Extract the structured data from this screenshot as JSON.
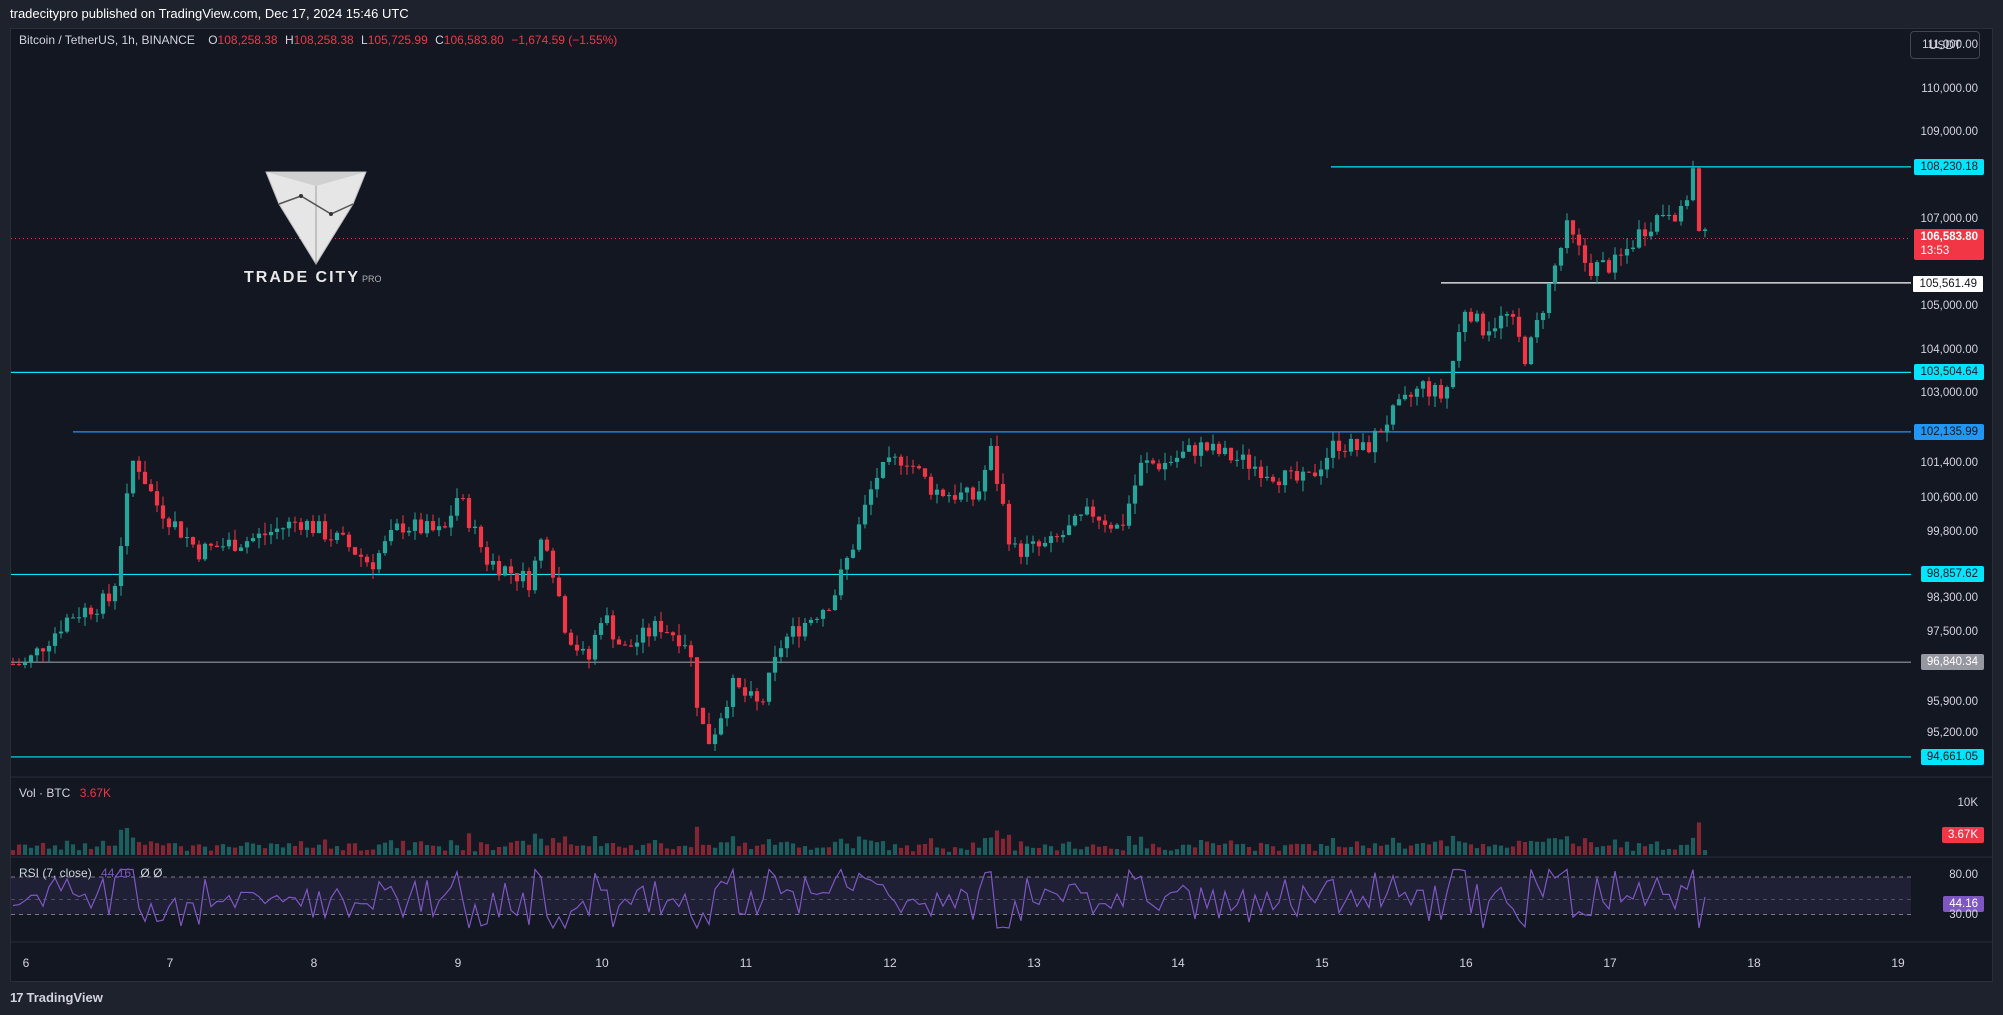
{
  "header": {
    "text": "tradecitypro published on TradingView.com, Dec 17, 2024 15:46 UTC"
  },
  "footer": {
    "brand": "TradingView"
  },
  "legend": {
    "symbol": "Bitcoin / TetherUS, 1h, BINANCE",
    "o_key": "O",
    "o": "108,258.38",
    "h_key": "H",
    "h": "108,258.38",
    "l_key": "L",
    "l": "105,725.99",
    "c_key": "C",
    "c": "106,583.80",
    "change": "−1,674.59 (−1.55%)"
  },
  "unit": "USDT",
  "logo": {
    "brand": "TRADE CITY",
    "suffix": "PRO"
  },
  "colors": {
    "up": "#26a69a",
    "down": "#f23645",
    "level": "#00e5ff",
    "background": "#131722"
  },
  "chart_data": {
    "type": "candlestick",
    "symbol": "BTCUSDT",
    "ylim": [
      94200,
      111400
    ],
    "x_ticks": [
      "6",
      "7",
      "8",
      "9",
      "10",
      "11",
      "12",
      "13",
      "14",
      "15",
      "16",
      "17",
      "18",
      "19"
    ],
    "y_ticks": [
      "111,000.00",
      "110,000.00",
      "109,000.00",
      "107,000.00",
      "105,000.00",
      "104,000.00",
      "103,000.00",
      "101,400.00",
      "100,600.00",
      "99,800.00",
      "98,300.00",
      "97,500.00",
      "95,900.00",
      "95,200.00"
    ],
    "current_price": {
      "value": "106,583.80",
      "countdown": "13:53"
    },
    "levels": [
      {
        "price": 108230.18,
        "label": "108,230.18",
        "color": "#00e5ff"
      },
      {
        "price": 105561.49,
        "label": "105,561.49",
        "color": "#ffffff"
      },
      {
        "price": 103504.64,
        "label": "103,504.64",
        "color": "#00e5ff"
      },
      {
        "price": 102135.99,
        "label": "102,135.99",
        "color": "#2196f3"
      },
      {
        "price": 98857.62,
        "label": "98,857.62",
        "color": "#00e5ff"
      },
      {
        "price": 96840.34,
        "label": "96,840.34",
        "color": "#9598a1"
      },
      {
        "price": 94661.05,
        "label": "94,661.05",
        "color": "#00e5ff"
      }
    ],
    "closes_anchor": [
      {
        "day": 6.0,
        "p": 96800
      },
      {
        "day": 6.3,
        "p": 97900
      },
      {
        "day": 6.6,
        "p": 98300
      },
      {
        "day": 6.75,
        "p": 101600
      },
      {
        "day": 6.9,
        "p": 100500
      },
      {
        "day": 7.2,
        "p": 99400
      },
      {
        "day": 7.6,
        "p": 99700
      },
      {
        "day": 7.9,
        "p": 100100
      },
      {
        "day": 8.2,
        "p": 99600
      },
      {
        "day": 8.4,
        "p": 99100
      },
      {
        "day": 8.6,
        "p": 100000
      },
      {
        "day": 8.9,
        "p": 99800
      },
      {
        "day": 9.0,
        "p": 100700
      },
      {
        "day": 9.2,
        "p": 99200
      },
      {
        "day": 9.5,
        "p": 98700
      },
      {
        "day": 9.6,
        "p": 99900
      },
      {
        "day": 9.75,
        "p": 97600
      },
      {
        "day": 9.9,
        "p": 96800
      },
      {
        "day": 10.0,
        "p": 98000
      },
      {
        "day": 10.15,
        "p": 97100
      },
      {
        "day": 10.4,
        "p": 97700
      },
      {
        "day": 10.6,
        "p": 97300
      },
      {
        "day": 10.68,
        "p": 95500
      },
      {
        "day": 10.75,
        "p": 95000
      },
      {
        "day": 10.9,
        "p": 96300
      },
      {
        "day": 11.1,
        "p": 95800
      },
      {
        "day": 11.25,
        "p": 97300
      },
      {
        "day": 11.6,
        "p": 98300
      },
      {
        "day": 11.75,
        "p": 99600
      },
      {
        "day": 11.9,
        "p": 101100
      },
      {
        "day": 12.1,
        "p": 101600
      },
      {
        "day": 12.3,
        "p": 100800
      },
      {
        "day": 12.6,
        "p": 100600
      },
      {
        "day": 12.7,
        "p": 101700
      },
      {
        "day": 12.85,
        "p": 99400
      },
      {
        "day": 13.1,
        "p": 99500
      },
      {
        "day": 13.4,
        "p": 100300
      },
      {
        "day": 13.6,
        "p": 99900
      },
      {
        "day": 13.75,
        "p": 101400
      },
      {
        "day": 13.9,
        "p": 101400
      },
      {
        "day": 14.15,
        "p": 101800
      },
      {
        "day": 14.5,
        "p": 101400
      },
      {
        "day": 14.8,
        "p": 101000
      },
      {
        "day": 14.9,
        "p": 101000
      },
      {
        "day": 15.1,
        "p": 101900
      },
      {
        "day": 15.3,
        "p": 101700
      },
      {
        "day": 15.45,
        "p": 102400
      },
      {
        "day": 15.7,
        "p": 103200
      },
      {
        "day": 15.85,
        "p": 102900
      },
      {
        "day": 16.0,
        "p": 105100
      },
      {
        "day": 16.1,
        "p": 104500
      },
      {
        "day": 16.3,
        "p": 104800
      },
      {
        "day": 16.42,
        "p": 103800
      },
      {
        "day": 16.55,
        "p": 105200
      },
      {
        "day": 16.7,
        "p": 106800
      },
      {
        "day": 16.85,
        "p": 105900
      },
      {
        "day": 17.05,
        "p": 106000
      },
      {
        "day": 17.2,
        "p": 106700
      },
      {
        "day": 17.4,
        "p": 107300
      },
      {
        "day": 17.5,
        "p": 107100
      },
      {
        "day": 17.58,
        "p": 108200
      },
      {
        "day": 17.62,
        "p": 106580
      }
    ],
    "volume": {
      "label": "Vol · BTC",
      "value": "3.67K",
      "axis_tick": "10K"
    },
    "rsi": {
      "label": "RSI (7, close)",
      "value": "44.16",
      "extra": "Ø Ø",
      "upper": "80.00",
      "lower": "30.00",
      "mid_label": "44.16"
    }
  }
}
